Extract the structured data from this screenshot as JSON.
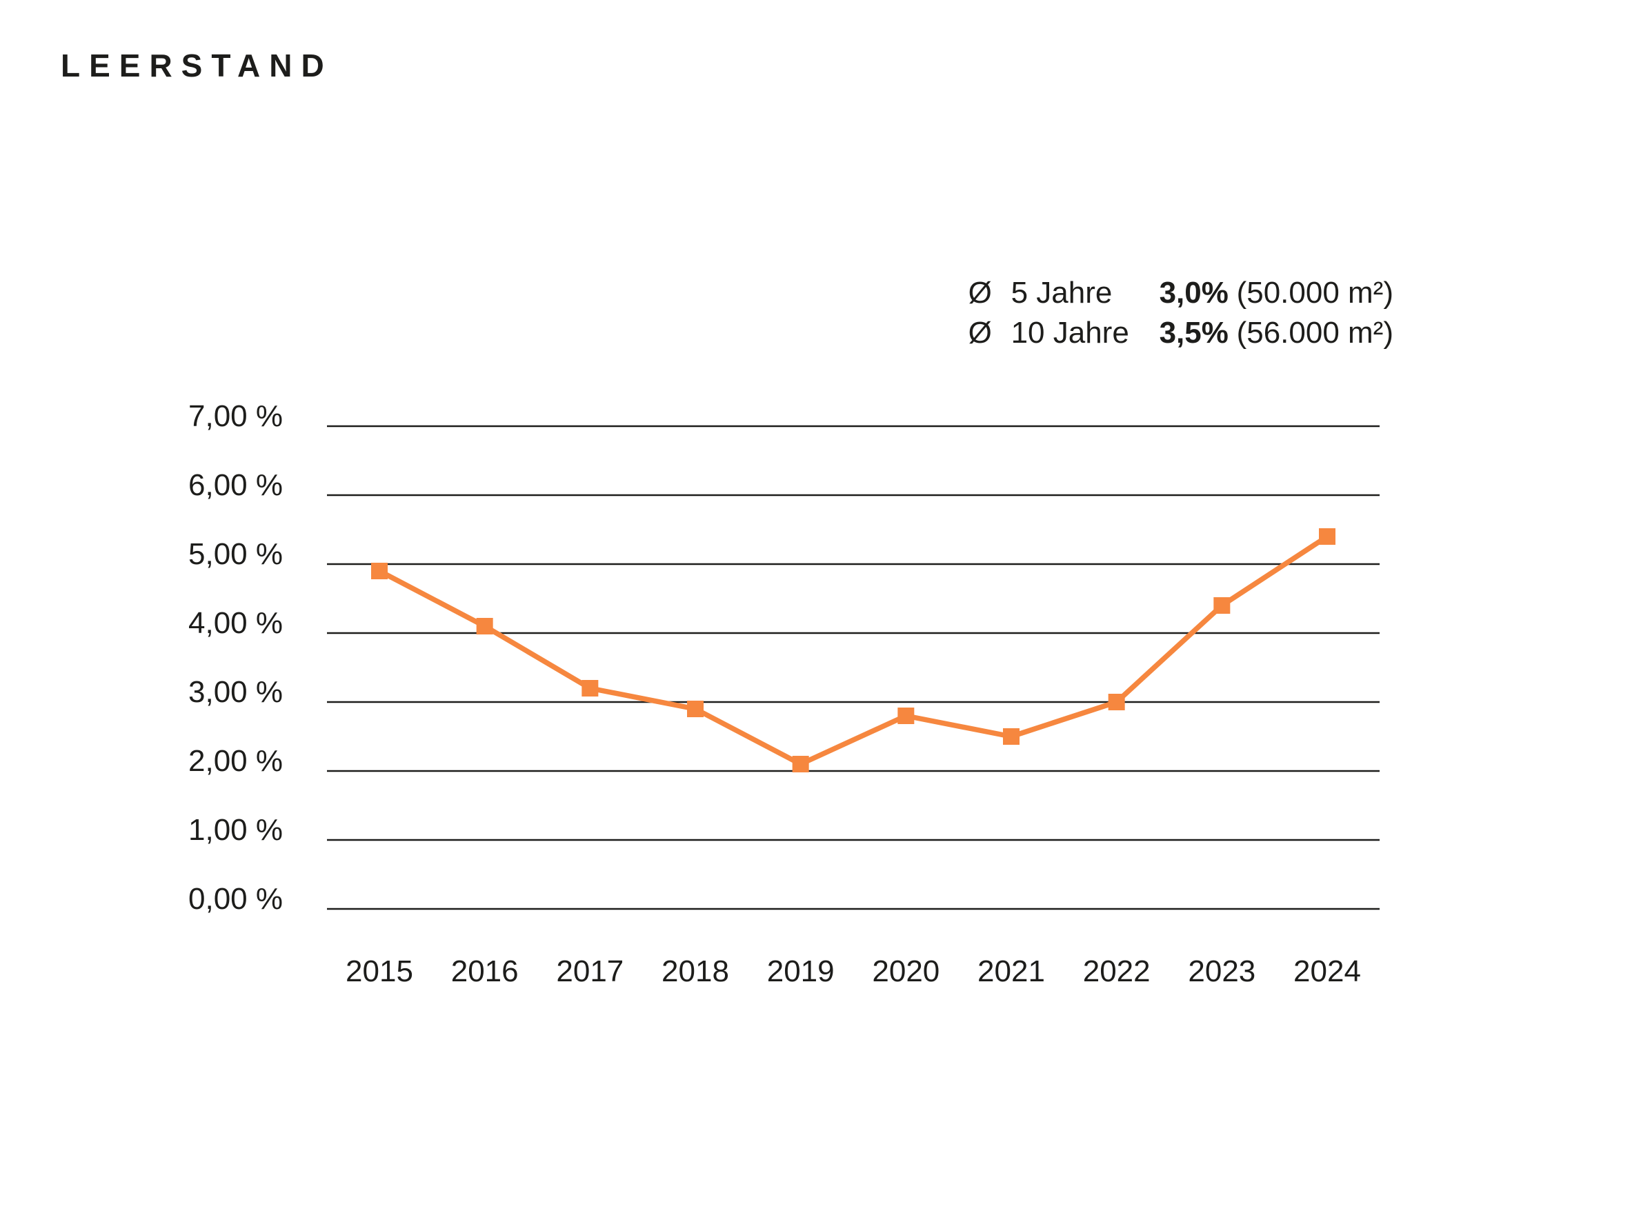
{
  "chart_data": {
    "type": "line",
    "title": "LEERSTAND",
    "categories": [
      "2015",
      "2016",
      "2017",
      "2018",
      "2019",
      "2020",
      "2021",
      "2022",
      "2023",
      "2024"
    ],
    "values": [
      4.9,
      4.1,
      3.2,
      2.9,
      2.1,
      2.8,
      2.5,
      3.0,
      4.4,
      5.4
    ],
    "xlabel": "",
    "ylabel": "",
    "ylim": [
      0,
      7
    ],
    "y_ticks": [
      0,
      1,
      2,
      3,
      4,
      5,
      6,
      7
    ],
    "y_tick_labels": [
      "0,00 %",
      "1,00 %",
      "2,00 %",
      "3,00 %",
      "4,00 %",
      "5,00 %",
      "6,00 %",
      "7,00 %"
    ],
    "grid": "horizontal",
    "legend_position": "top-right",
    "marker": "square",
    "annotations": [
      {
        "symbol": "Ø",
        "label": "5 Jahre",
        "value": "3,0%",
        "detail": "(50.000 m²)"
      },
      {
        "symbol": "Ø",
        "label": "10 Jahre",
        "value": "3,5%",
        "detail": "(56.000 m²)"
      }
    ],
    "colors": {
      "line": "#F6873F",
      "marker": "#F6873F",
      "grid": "#1D1D1B",
      "text": "#1D1D1B"
    }
  }
}
